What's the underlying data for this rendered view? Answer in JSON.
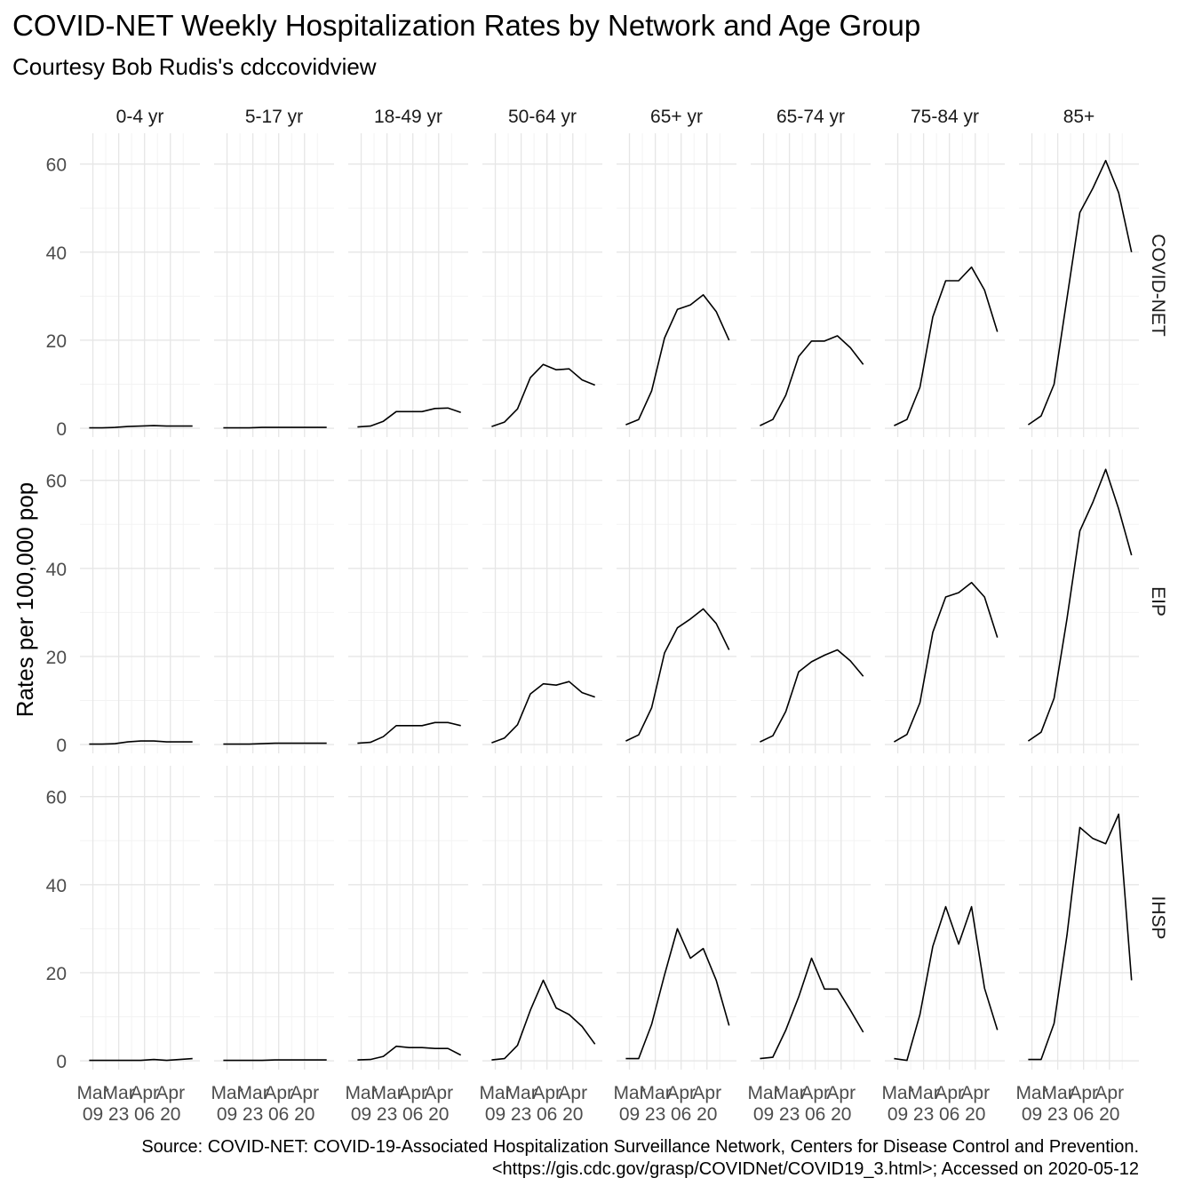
{
  "title": "COVID-NET Weekly Hospitalization Rates by Network and Age Group",
  "subtitle": "Courtesy Bob Rudis's cdccovidview",
  "caption": [
    "Source: COVID-NET: COVID-19-Associated Hospitalization Surveillance Network, Centers for Disease Control and Prevention.",
    "<https://gis.cdc.gov/grasp/COVIDNet/COVID19_3.html>; Accessed on 2020-05-12"
  ],
  "chart_data": {
    "type": "line",
    "facet_columns": [
      "0-4 yr",
      "5-17 yr",
      "18-49 yr",
      "50-64 yr",
      "65+ yr",
      "65-74 yr",
      "75-84 yr",
      "85+"
    ],
    "facet_rows": [
      "COVID-NET",
      "EIP",
      "IHSP"
    ],
    "ylabel": "Rates per 100,000 pop",
    "xlabel": "",
    "x": [
      "2020-03-07",
      "2020-03-14",
      "2020-03-21",
      "2020-03-28",
      "2020-04-04",
      "2020-04-11",
      "2020-04-18",
      "2020-04-25",
      "2020-05-02"
    ],
    "xlim": [
      "2020-03-02",
      "2020-05-06"
    ],
    "ylim": [
      -2,
      67
    ],
    "x_ticks": [
      {
        "date": "2020-03-09",
        "line1": "Mar",
        "line2": "09"
      },
      {
        "date": "2020-03-23",
        "line1": "Mar",
        "line2": "23"
      },
      {
        "date": "2020-04-06",
        "line1": "Apr",
        "line2": "06"
      },
      {
        "date": "2020-04-20",
        "line1": "Apr",
        "line2": "20"
      }
    ],
    "y_ticks": [
      "0",
      "20",
      "40",
      "60"
    ],
    "y_tick_values": [
      0,
      20,
      40,
      60
    ],
    "grid": true,
    "line_color": "#000000",
    "series": [
      [
        [
          0.1,
          0.1,
          0.2,
          0.4,
          0.5,
          0.6,
          0.5,
          0.5,
          0.5
        ],
        [
          0.1,
          0.1,
          0.1,
          0.2,
          0.2,
          0.2,
          0.2,
          0.2,
          0.2
        ],
        [
          0.3,
          0.5,
          1.6,
          3.8,
          3.8,
          3.8,
          4.5,
          4.6,
          3.6
        ],
        [
          0.4,
          1.4,
          4.4,
          11.5,
          14.5,
          13.3,
          13.5,
          11.0,
          9.8
        ],
        [
          0.8,
          2.0,
          8.5,
          20.5,
          27.0,
          28.0,
          30.3,
          26.5,
          20.0
        ],
        [
          0.6,
          2.0,
          7.5,
          16.3,
          19.8,
          19.8,
          21.0,
          18.3,
          14.5
        ],
        [
          0.6,
          2.0,
          9.3,
          25.3,
          33.5,
          33.5,
          36.6,
          31.4,
          21.9
        ],
        [
          0.8,
          2.8,
          10.0,
          29.5,
          49.0,
          54.5,
          60.8,
          53.5,
          40.0
        ]
      ],
      [
        [
          0.1,
          0.1,
          0.2,
          0.6,
          0.8,
          0.8,
          0.6,
          0.6,
          0.6
        ],
        [
          0.1,
          0.1,
          0.1,
          0.2,
          0.3,
          0.3,
          0.3,
          0.3,
          0.3
        ],
        [
          0.3,
          0.5,
          1.8,
          4.3,
          4.3,
          4.3,
          5.0,
          5.0,
          4.3
        ],
        [
          0.4,
          1.5,
          4.5,
          11.5,
          13.8,
          13.5,
          14.3,
          11.8,
          10.8
        ],
        [
          0.8,
          2.2,
          8.3,
          20.8,
          26.5,
          28.5,
          30.8,
          27.5,
          21.5
        ],
        [
          0.6,
          2.0,
          7.5,
          16.5,
          18.8,
          20.3,
          21.5,
          19.0,
          15.5
        ],
        [
          0.6,
          2.3,
          9.5,
          25.5,
          33.5,
          34.5,
          36.8,
          33.5,
          24.3
        ],
        [
          0.8,
          2.8,
          10.5,
          28.5,
          48.5,
          55.0,
          62.5,
          53.5,
          43.0
        ]
      ],
      [
        [
          0.1,
          0.1,
          0.1,
          0.1,
          0.1,
          0.3,
          0.1,
          0.3,
          0.5
        ],
        [
          0.1,
          0.1,
          0.1,
          0.1,
          0.2,
          0.2,
          0.2,
          0.2,
          0.2
        ],
        [
          0.2,
          0.3,
          1.0,
          3.3,
          3.0,
          3.0,
          2.8,
          2.8,
          1.3
        ],
        [
          0.2,
          0.5,
          3.5,
          11.5,
          18.3,
          12.0,
          10.5,
          7.8,
          3.8
        ],
        [
          0.5,
          0.5,
          8.3,
          19.5,
          30.0,
          23.3,
          25.5,
          18.3,
          8.0
        ],
        [
          0.5,
          0.8,
          7.0,
          14.5,
          23.3,
          16.3,
          16.3,
          11.5,
          6.5
        ],
        [
          0.5,
          0.1,
          10.5,
          26.0,
          35.0,
          26.5,
          35.0,
          16.5,
          7.0
        ],
        [
          0.3,
          0.3,
          8.5,
          28.5,
          53.0,
          50.5,
          49.3,
          56.0,
          18.3
        ]
      ]
    ]
  }
}
